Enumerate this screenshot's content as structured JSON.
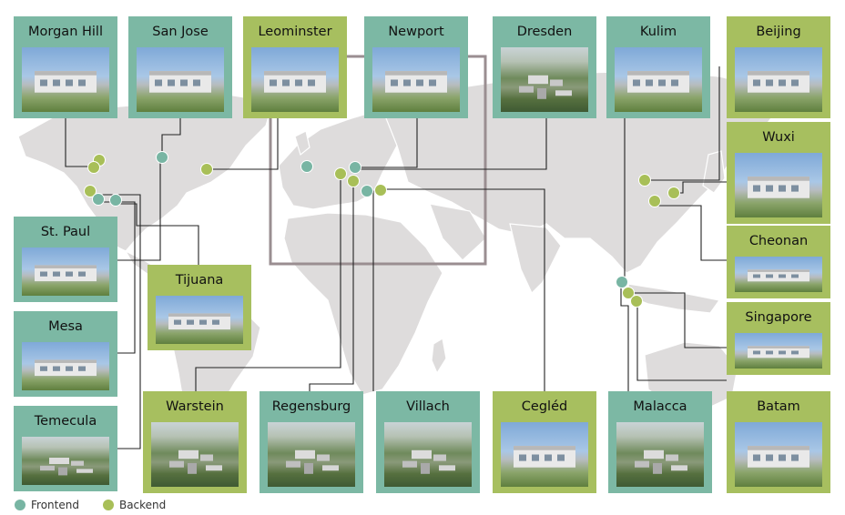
{
  "colors": {
    "frontend": "#78b5a3",
    "backend": "#a8bf58",
    "frontend_card": "#7cb8a4",
    "backend_card": "#a7bf5f",
    "land": "#dedcdc",
    "connector": "#222222",
    "region_box": "#9a8e91"
  },
  "sites": [
    {
      "name": "Morgan Hill",
      "type": "frontend",
      "photo": "factory-photo"
    },
    {
      "name": "San Jose",
      "type": "frontend",
      "photo": "factory-photo"
    },
    {
      "name": "Leominster",
      "type": "backend",
      "photo": "factory-photo"
    },
    {
      "name": "Newport",
      "type": "frontend",
      "photo": "factory-photo"
    },
    {
      "name": "Dresden",
      "type": "frontend",
      "photo": "aerial-photo"
    },
    {
      "name": "Kulim",
      "type": "frontend",
      "photo": "factory-photo"
    },
    {
      "name": "Beijing",
      "type": "backend",
      "photo": "factory-photo"
    },
    {
      "name": "Wuxi",
      "type": "backend",
      "photo": "factory-photo"
    },
    {
      "name": "Cheonan",
      "type": "backend",
      "photo": "factory-photo"
    },
    {
      "name": "Singapore",
      "type": "backend",
      "photo": "factory-photo"
    },
    {
      "name": "Batam",
      "type": "backend",
      "photo": "factory-photo"
    },
    {
      "name": "Malacca",
      "type": "frontend",
      "photo": "aerial-photo"
    },
    {
      "name": "Cegléd",
      "type": "backend",
      "photo": "factory-photo"
    },
    {
      "name": "Villach",
      "type": "frontend",
      "photo": "aerial-photo"
    },
    {
      "name": "Regensburg",
      "type": "frontend",
      "photo": "aerial-photo"
    },
    {
      "name": "Warstein",
      "type": "backend",
      "photo": "aerial-photo"
    },
    {
      "name": "Tijuana",
      "type": "backend",
      "photo": "factory-photo"
    },
    {
      "name": "St. Paul",
      "type": "frontend",
      "photo": "factory-photo"
    },
    {
      "name": "Mesa",
      "type": "frontend",
      "photo": "factory-photo"
    },
    {
      "name": "Temecula",
      "type": "frontend",
      "photo": "aerial-photo"
    }
  ],
  "legend": {
    "frontend_label": "Frontend",
    "backend_label": "Backend"
  }
}
